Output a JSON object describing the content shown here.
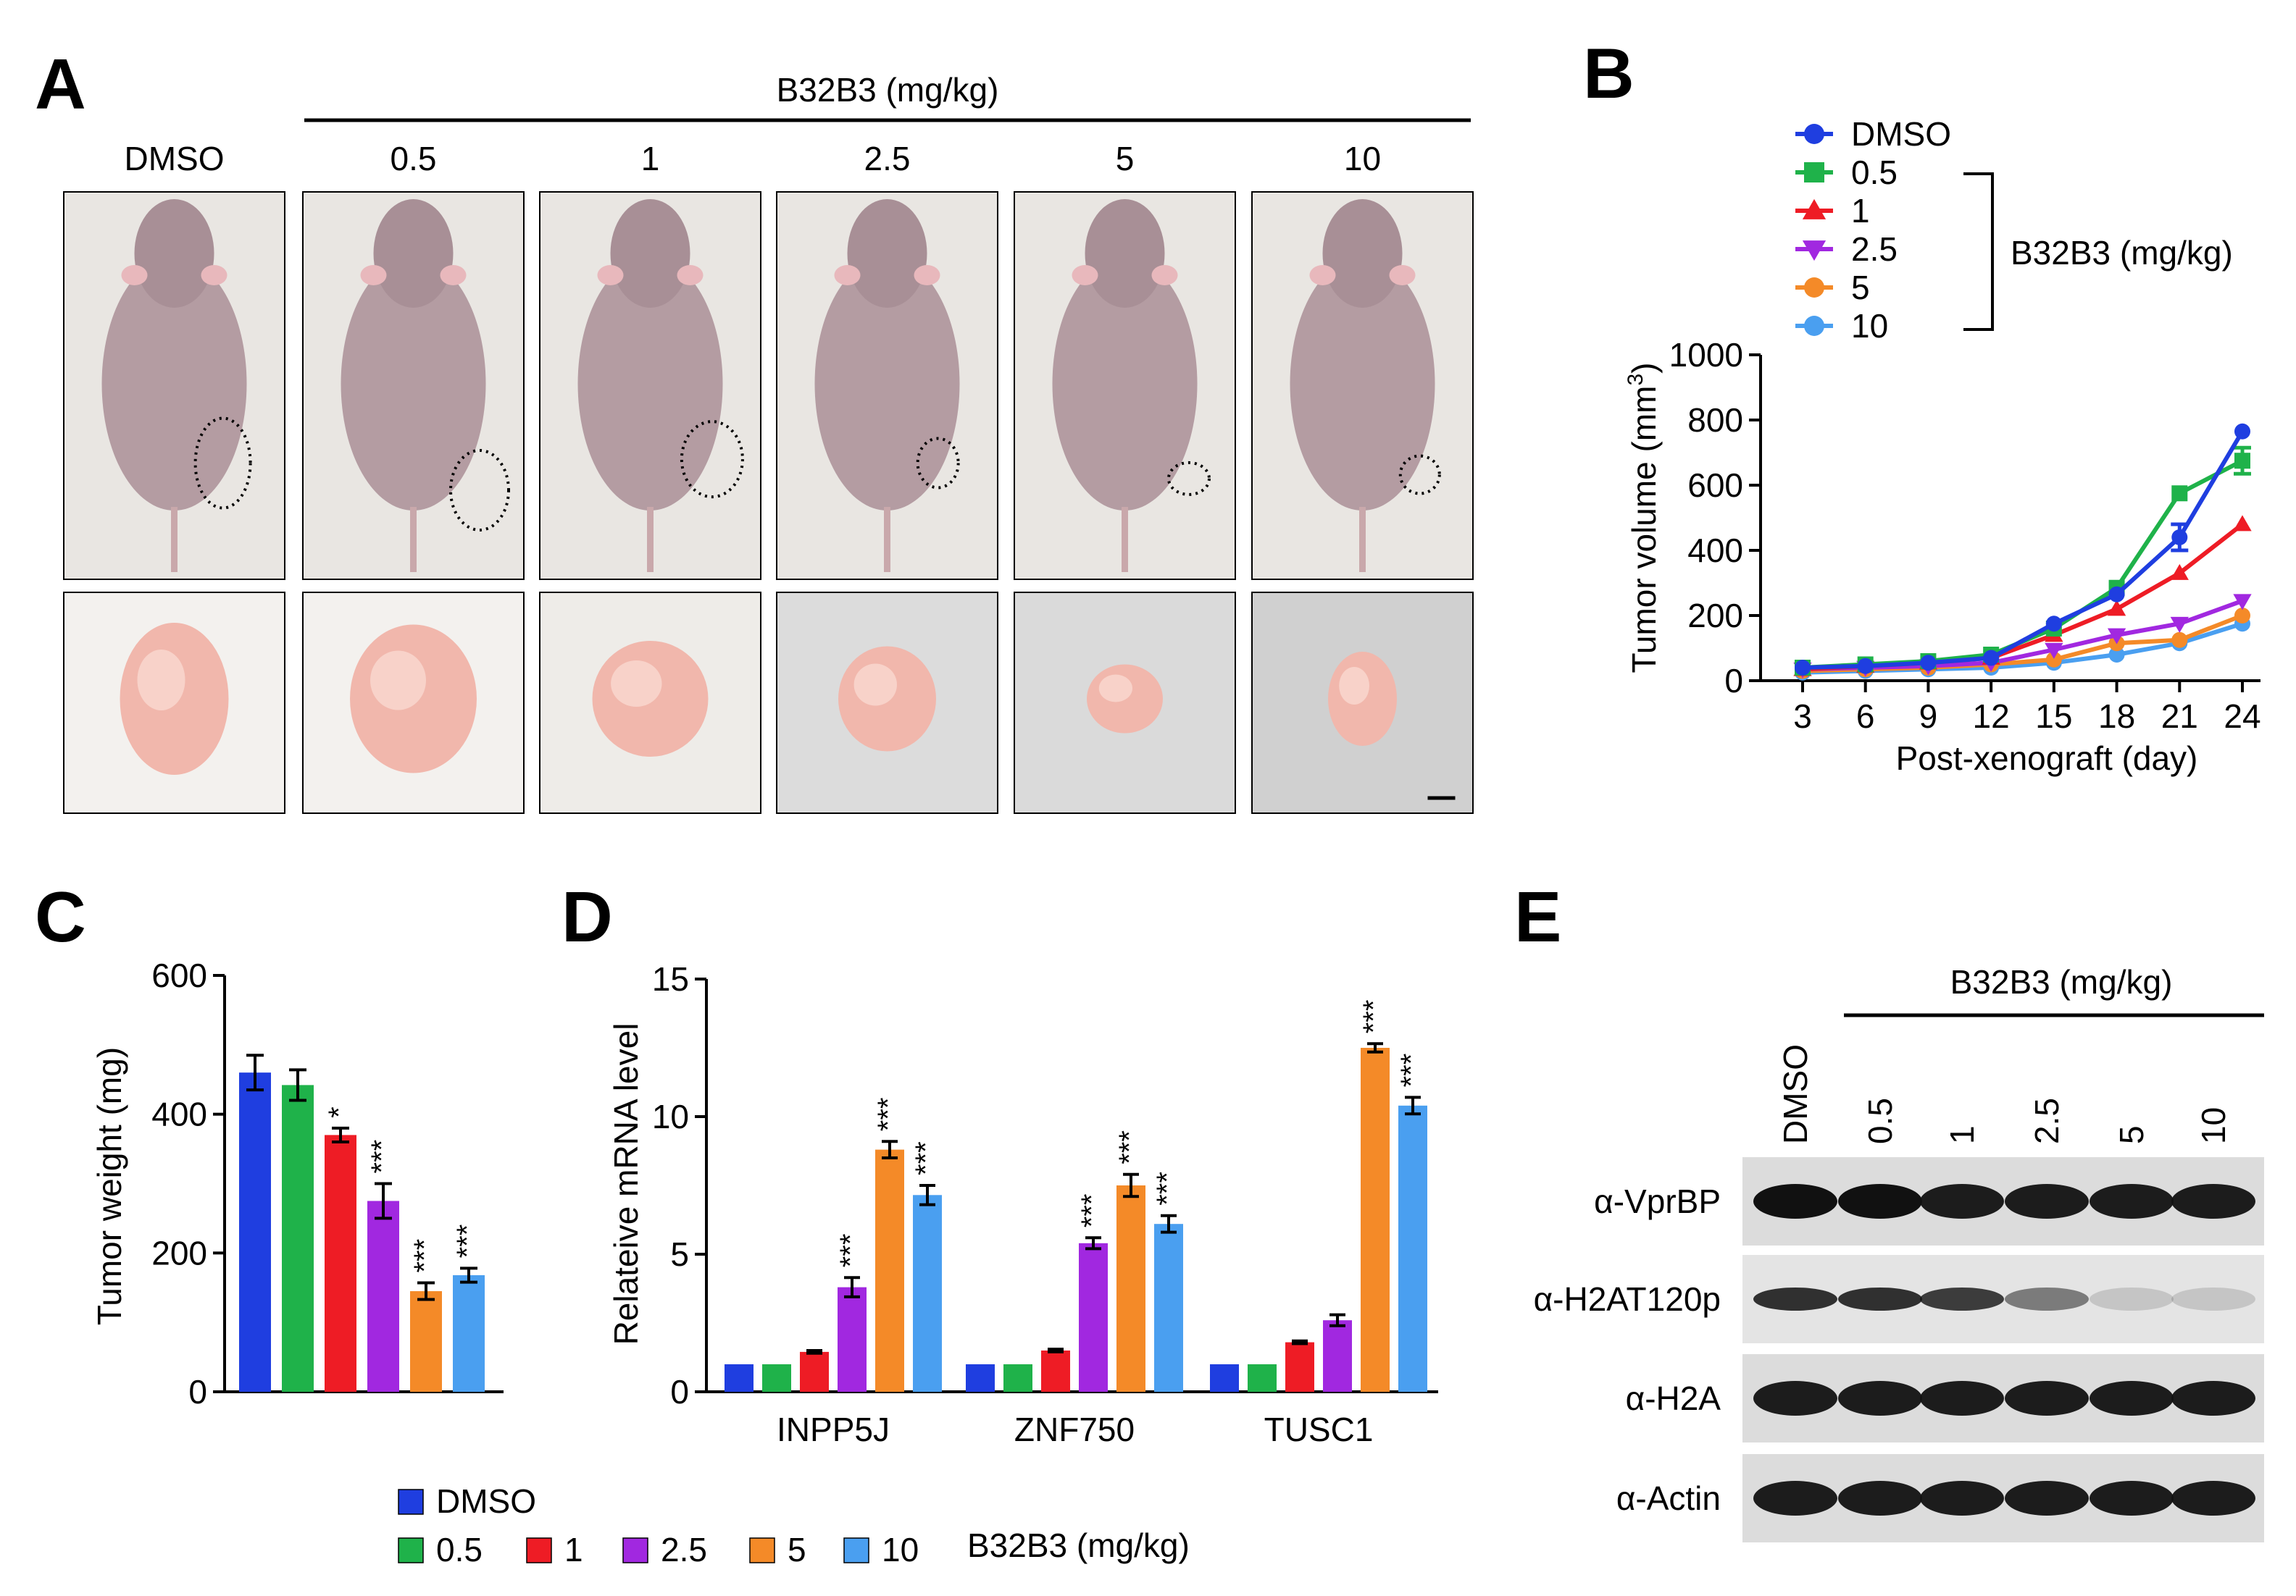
{
  "panels": {
    "A": {
      "letter": "A",
      "header": "B32B3 (mg/kg)",
      "groups": [
        "DMSO",
        "0.5",
        "1",
        "2.5",
        "5",
        "10"
      ]
    },
    "B": {
      "letter": "B",
      "bracket_label": "B32B3 (mg/kg)"
    },
    "C": {
      "letter": "C"
    },
    "D": {
      "letter": "D"
    },
    "E": {
      "letter": "E",
      "header": "B32B3 (mg/kg)",
      "lanes": [
        "DMSO",
        "0.5",
        "1",
        "2.5",
        "5",
        "10"
      ],
      "blots": [
        "α-VprBP",
        "α-H2AT120p",
        "α-H2A",
        "α-Actin"
      ],
      "band_intensity": [
        [
          1.0,
          1.0,
          0.95,
          0.95,
          0.95,
          0.95
        ],
        [
          0.85,
          0.85,
          0.8,
          0.5,
          0.15,
          0.15
        ],
        [
          0.95,
          0.95,
          0.95,
          0.95,
          0.95,
          0.95
        ],
        [
          0.95,
          0.95,
          0.95,
          0.95,
          0.95,
          0.95
        ]
      ]
    }
  },
  "legend_bottom": {
    "items": [
      "DMSO",
      "0.5",
      "1",
      "2.5",
      "5",
      "10"
    ],
    "suffix": "B32B3 (mg/kg)"
  },
  "colors": {
    "DMSO": "#1f3ee0",
    "0.5": "#1fb24a",
    "1": "#ee1c25",
    "2.5": "#a128e0",
    "5": "#f48a28",
    "10": "#4a9ff0"
  },
  "chart_data": [
    {
      "id": "B",
      "type": "line",
      "xlabel": "Post-xenograft (day)",
      "ylabel": "Tumor volume (mm3)",
      "x": [
        3,
        6,
        9,
        12,
        15,
        18,
        21,
        24
      ],
      "xticks": [
        "3",
        "6",
        "9",
        "12",
        "15",
        "18",
        "21",
        "24"
      ],
      "yticks": [
        "0",
        "200",
        "400",
        "600",
        "800",
        "1000"
      ],
      "ylim": [
        0,
        1000
      ],
      "series": [
        {
          "name": "DMSO",
          "marker": "circle",
          "values": [
            40,
            45,
            55,
            70,
            175,
            265,
            440,
            765
          ],
          "err": [
            0,
            0,
            0,
            0,
            0,
            0,
            40,
            0
          ]
        },
        {
          "name": "0.5",
          "marker": "square",
          "values": [
            40,
            50,
            60,
            80,
            160,
            285,
            575,
            675
          ],
          "err": [
            0,
            0,
            0,
            0,
            0,
            0,
            0,
            40
          ]
        },
        {
          "name": "1",
          "marker": "triangle-up",
          "values": [
            35,
            45,
            55,
            70,
            140,
            220,
            330,
            480
          ],
          "err": [
            0,
            0,
            0,
            0,
            0,
            0,
            0,
            0
          ]
        },
        {
          "name": "2.5",
          "marker": "triangle-down",
          "values": [
            35,
            40,
            45,
            55,
            95,
            140,
            175,
            245
          ],
          "err": [
            0,
            0,
            0,
            0,
            0,
            0,
            0,
            0
          ]
        },
        {
          "name": "5",
          "marker": "circle",
          "values": [
            30,
            35,
            40,
            50,
            65,
            115,
            125,
            200
          ],
          "err": [
            0,
            0,
            0,
            0,
            0,
            0,
            0,
            0
          ]
        },
        {
          "name": "10",
          "marker": "circle",
          "values": [
            25,
            30,
            35,
            40,
            55,
            80,
            115,
            175
          ],
          "err": [
            0,
            0,
            0,
            0,
            0,
            0,
            0,
            0
          ]
        }
      ]
    },
    {
      "id": "C",
      "type": "bar",
      "ylabel": "Tumor weight (mg)",
      "categories": [
        "DMSO",
        "0.5",
        "1",
        "2.5",
        "5",
        "10"
      ],
      "values": [
        460,
        442,
        370,
        275,
        145,
        168
      ],
      "err": [
        25,
        22,
        10,
        25,
        12,
        10
      ],
      "sig": [
        "",
        "",
        "*",
        "***",
        "***",
        "***"
      ],
      "yticks": [
        "0",
        "200",
        "400",
        "600"
      ],
      "ylim": [
        0,
        600
      ]
    },
    {
      "id": "D",
      "type": "bar",
      "ylabel": "Relateive mRNA level",
      "categories": [
        "INPP5J",
        "ZNF750",
        "TUSC1"
      ],
      "series": [
        {
          "name": "DMSO",
          "values": [
            1.0,
            1.0,
            1.0
          ],
          "err": [
            0,
            0,
            0
          ],
          "sig": [
            "",
            "",
            ""
          ]
        },
        {
          "name": "0.5",
          "values": [
            1.0,
            1.0,
            1.0
          ],
          "err": [
            0,
            0,
            0
          ],
          "sig": [
            "",
            "",
            ""
          ]
        },
        {
          "name": "1",
          "values": [
            1.45,
            1.5,
            1.8
          ],
          "err": [
            0.05,
            0.05,
            0.05
          ],
          "sig": [
            "",
            "",
            ""
          ]
        },
        {
          "name": "2.5",
          "values": [
            3.8,
            5.4,
            2.6
          ],
          "err": [
            0.35,
            0.2,
            0.2
          ],
          "sig": [
            "***",
            "***",
            ""
          ]
        },
        {
          "name": "5",
          "values": [
            8.8,
            7.5,
            12.5
          ],
          "err": [
            0.3,
            0.4,
            0.15
          ],
          "sig": [
            "***",
            "***",
            "***"
          ]
        },
        {
          "name": "10",
          "values": [
            7.15,
            6.1,
            10.4
          ],
          "err": [
            0.35,
            0.3,
            0.3
          ],
          "sig": [
            "***",
            "***",
            "***"
          ]
        }
      ],
      "yticks": [
        "0",
        "5",
        "10",
        "15"
      ],
      "ylim": [
        0,
        15
      ]
    }
  ]
}
